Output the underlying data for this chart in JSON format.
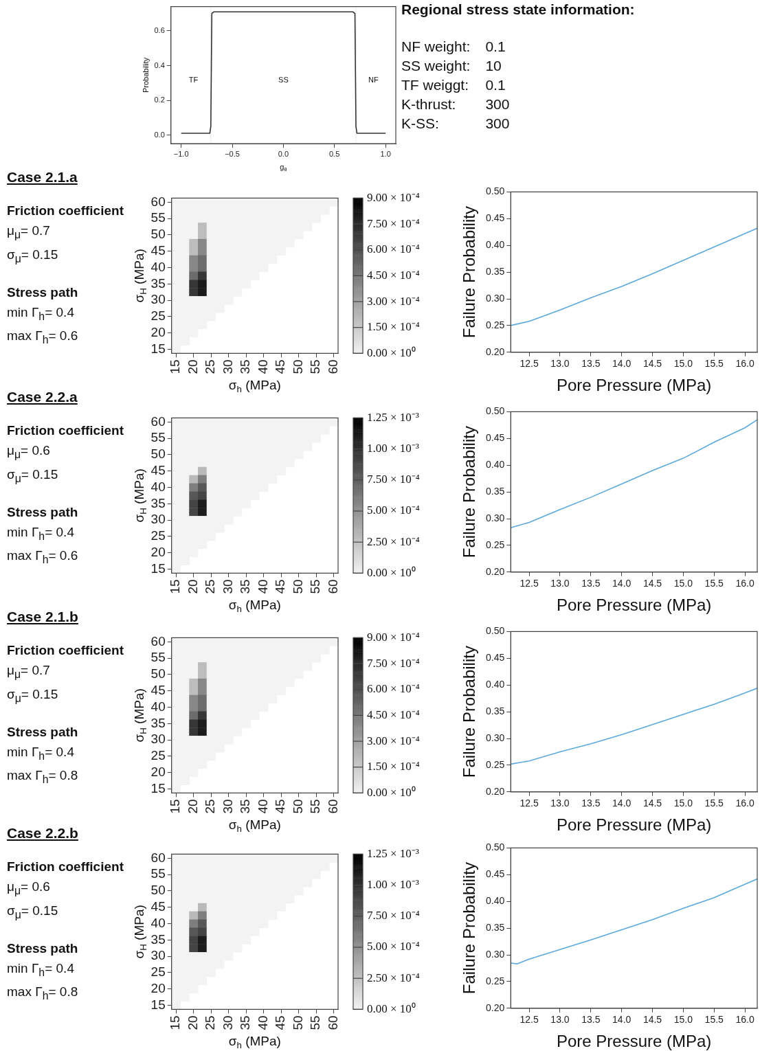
{
  "chart_data": [
    {
      "type": "line",
      "xlabel": "g$_{θ}$",
      "ylabel": "Probability",
      "xlim": [
        -1.1,
        1.1
      ],
      "xticks": [
        {
          "value": -1,
          "label": "−1.0"
        },
        {
          "value": -0.5,
          "label": "−0.5"
        },
        {
          "value": 0,
          "label": "0.0"
        },
        {
          "value": 0.5,
          "label": "0.5"
        },
        {
          "value": 1,
          "label": "1.0"
        }
      ],
      "ylim": [
        -0.05,
        0.74
      ],
      "yticks": [
        {
          "value": 0,
          "label": "0.0"
        },
        {
          "value": 0.2,
          "label": "0.2"
        },
        {
          "value": 0.4,
          "label": "0.4"
        },
        {
          "value": 0.6,
          "label": "0.6"
        }
      ],
      "series": [
        {
          "color": "#333333",
          "x": [
            -1,
            -0.72,
            -0.71,
            -0.7,
            -0.68,
            0.68,
            0.7,
            0.71,
            0.72,
            1
          ],
          "values": [
            0.01,
            0.01,
            0.05,
            0.7,
            0.71,
            0.71,
            0.7,
            0.05,
            0.01,
            0.01
          ]
        }
      ],
      "ref_lines": [
        {
          "axis": "x",
          "value": -0.71,
          "color": "#bbbbbb",
          "line_style": "dotted"
        },
        {
          "axis": "x",
          "value": 0.71,
          "color": "#bbbbbb",
          "line_style": "dotted"
        }
      ],
      "annotations": [
        "TF",
        "SS",
        "NF"
      ]
    },
    {
      "type": "other",
      "title": "Regional stress state information:",
      "annotations": [
        "NF weight:",
        "0.1",
        "SS weight:",
        "10",
        "TF weiggt:",
        "0.1",
        "K-thrust:",
        "300",
        "K-SS:",
        "300"
      ]
    },
    {
      "type": "other",
      "title": "Case 2.1.a",
      "annotations": [
        "Friction coefficient",
        "μ$_{μ}$= 0.7",
        "σ$_{μ}$= 0.15",
        "Stress path",
        "min Γ$_{h}$= 0.4",
        "max Γ$_{h}$= 0.6"
      ]
    },
    {
      "type": "heatmap",
      "xlabel": "σ$_{h}$ (MPa)",
      "ylabel": "σ$_{H}$ (MPa)",
      "categories": [
        "15",
        null,
        "20",
        null,
        "25",
        null,
        "30",
        null,
        "35",
        null,
        "40",
        null,
        "45",
        null,
        "50",
        null,
        "55",
        null,
        "60"
      ],
      "y_categories": [
        "60",
        null,
        "55",
        null,
        "50",
        null,
        "45",
        null,
        "40",
        null,
        "35",
        null,
        "30",
        null,
        "25",
        null,
        "20",
        null,
        "15"
      ],
      "clim": [
        0,
        0.0009
      ],
      "cticks": [
        {
          "value": 0,
          "label": "0.00 × 10⁰"
        },
        {
          "value": 0.00015,
          "label": "1.50 × 10⁻⁴"
        },
        {
          "value": 0.0003,
          "label": "3.00 × 10⁻⁴"
        },
        {
          "value": 0.00045,
          "label": "4.50 × 10⁻⁴"
        },
        {
          "value": 0.0006,
          "label": "6.00 × 10⁻⁴"
        },
        {
          "value": 0.00075,
          "label": "7.50 × 10⁻⁴"
        },
        {
          "value": 0.0009,
          "label": "9.00 × 10⁻⁴"
        }
      ],
      "cells": [
        [
          0,
          0,
          0,
          0,
          0,
          0,
          0,
          0,
          0,
          0,
          0,
          0,
          0,
          0,
          0,
          0,
          0,
          0,
          0
        ],
        [
          0,
          0,
          0,
          0,
          0,
          0,
          0,
          0,
          0,
          0,
          0,
          0,
          0,
          0,
          0,
          0,
          0,
          0,
          null
        ],
        [
          0,
          0,
          0,
          0,
          0,
          0,
          0,
          0,
          0,
          0,
          0,
          0,
          0,
          0,
          0,
          0,
          0,
          null,
          null
        ],
        [
          0,
          0,
          0,
          0.0002,
          0,
          0,
          0,
          0,
          0,
          0,
          0,
          0,
          0,
          0,
          0,
          0,
          null,
          null,
          null
        ],
        [
          0,
          0,
          0,
          0.0002,
          0,
          0,
          0,
          0,
          0,
          0,
          0,
          0,
          0,
          0,
          0,
          null,
          null,
          null,
          null
        ],
        [
          0,
          0,
          0.0002,
          0.0004,
          0,
          0,
          0,
          0,
          0,
          0,
          0,
          0,
          0,
          0,
          null,
          null,
          null,
          null,
          null
        ],
        [
          0,
          0,
          0.0002,
          0.0004,
          0,
          0,
          0,
          0,
          0,
          0,
          0,
          0,
          0,
          null,
          null,
          null,
          null,
          null,
          null
        ],
        [
          0,
          0,
          0.0004,
          0.0005,
          0,
          0,
          0,
          0,
          0,
          0,
          0,
          0,
          null,
          null,
          null,
          null,
          null,
          null,
          null
        ],
        [
          0,
          0,
          0.0004,
          0.0005,
          0,
          0,
          0,
          0,
          0,
          0,
          0,
          null,
          null,
          null,
          null,
          null,
          null,
          null,
          null
        ],
        [
          0,
          0,
          0.0005,
          0.0007,
          0,
          0,
          0,
          0,
          0,
          0,
          null,
          null,
          null,
          null,
          null,
          null,
          null,
          null,
          null
        ],
        [
          0,
          0,
          0.0007,
          0.0008,
          0,
          0,
          0,
          0,
          0,
          null,
          null,
          null,
          null,
          null,
          null,
          null,
          null,
          null,
          null
        ],
        [
          0,
          0,
          0.0007,
          0.0008,
          0,
          0,
          0,
          0,
          null,
          null,
          null,
          null,
          null,
          null,
          null,
          null,
          null,
          null,
          null
        ],
        [
          0,
          0,
          0,
          0,
          0,
          0,
          0,
          null,
          null,
          null,
          null,
          null,
          null,
          null,
          null,
          null,
          null,
          null,
          null
        ],
        [
          0,
          0,
          0,
          0,
          0,
          0,
          null,
          null,
          null,
          null,
          null,
          null,
          null,
          null,
          null,
          null,
          null,
          null,
          null
        ],
        [
          0,
          0,
          0,
          0,
          0,
          null,
          null,
          null,
          null,
          null,
          null,
          null,
          null,
          null,
          null,
          null,
          null,
          null,
          null
        ],
        [
          0,
          0,
          0,
          0,
          null,
          null,
          null,
          null,
          null,
          null,
          null,
          null,
          null,
          null,
          null,
          null,
          null,
          null,
          null
        ],
        [
          0,
          0,
          0,
          null,
          null,
          null,
          null,
          null,
          null,
          null,
          null,
          null,
          null,
          null,
          null,
          null,
          null,
          null,
          null
        ],
        [
          0,
          0,
          null,
          null,
          null,
          null,
          null,
          null,
          null,
          null,
          null,
          null,
          null,
          null,
          null,
          null,
          null,
          null,
          null
        ],
        [
          0,
          null,
          null,
          null,
          null,
          null,
          null,
          null,
          null,
          null,
          null,
          null,
          null,
          null,
          null,
          null,
          null,
          null,
          null
        ]
      ]
    },
    {
      "type": "line",
      "xlabel": "Pore Pressure (MPa)",
      "ylabel": "Failure Probability",
      "xlim": [
        12.2,
        16.2
      ],
      "xticks": [
        {
          "value": 12.5,
          "label": "12.5"
        },
        {
          "value": 13,
          "label": "13.0"
        },
        {
          "value": 13.5,
          "label": "13.5"
        },
        {
          "value": 14,
          "label": "14.0"
        },
        {
          "value": 14.5,
          "label": "14.5"
        },
        {
          "value": 15,
          "label": "15.0"
        },
        {
          "value": 15.5,
          "label": "15.5"
        },
        {
          "value": 16,
          "label": "16.0"
        }
      ],
      "ylim": [
        0.2,
        0.5
      ],
      "yticks": [
        {
          "value": 0.2,
          "label": "0.20"
        },
        {
          "value": 0.25,
          "label": "0.25"
        },
        {
          "value": 0.3,
          "label": "0.30"
        },
        {
          "value": 0.35,
          "label": "0.35"
        },
        {
          "value": 0.4,
          "label": "0.40"
        },
        {
          "value": 0.45,
          "label": "0.45"
        },
        {
          "value": 0.5,
          "label": "0.50"
        }
      ],
      "x": [
        12.2,
        12.5,
        13,
        13.5,
        14,
        14.5,
        15,
        15.5,
        16,
        16.2
      ],
      "series": [
        {
          "color": "#5aa9dc",
          "values": [
            0.25,
            0.258,
            0.279,
            0.302,
            0.323,
            0.347,
            0.372,
            0.397,
            0.422,
            0.432
          ]
        }
      ]
    },
    {
      "type": "other",
      "title": "Case 2.2.a",
      "annotations": [
        "Friction coefficient",
        "μ$_{μ}$= 0.6",
        "σ$_{μ}$= 0.15",
        "Stress path",
        "min Γ$_{h}$= 0.4",
        "max Γ$_{h}$= 0.6"
      ]
    },
    {
      "type": "heatmap",
      "xlabel": "σ$_{h}$ (MPa)",
      "ylabel": "σ$_{H}$ (MPa)",
      "categories": [
        "15",
        null,
        "20",
        null,
        "25",
        null,
        "30",
        null,
        "35",
        null,
        "40",
        null,
        "45",
        null,
        "50",
        null,
        "55",
        null,
        "60"
      ],
      "y_categories": [
        "60",
        null,
        "55",
        null,
        "50",
        null,
        "45",
        null,
        "40",
        null,
        "35",
        null,
        "30",
        null,
        "25",
        null,
        "20",
        null,
        "15"
      ],
      "clim": [
        0,
        0.00125
      ],
      "cticks": [
        {
          "value": 0,
          "label": "0.00 × 10⁰"
        },
        {
          "value": 0.00025,
          "label": "2.50 × 10⁻⁴"
        },
        {
          "value": 0.0005,
          "label": "5.00 × 10⁻⁴"
        },
        {
          "value": 0.00075,
          "label": "7.50 × 10⁻⁴"
        },
        {
          "value": 0.001,
          "label": "1.00 × 10⁻³"
        },
        {
          "value": 0.00125,
          "label": "1.25 × 10⁻³"
        }
      ],
      "cells": [
        [
          0,
          0,
          0,
          0,
          0,
          0,
          0,
          0,
          0,
          0,
          0,
          0,
          0,
          0,
          0,
          0,
          0,
          0,
          0
        ],
        [
          0,
          0,
          0,
          0,
          0,
          0,
          0,
          0,
          0,
          0,
          0,
          0,
          0,
          0,
          0,
          0,
          0,
          0,
          null
        ],
        [
          0,
          0,
          0,
          0,
          0,
          0,
          0,
          0,
          0,
          0,
          0,
          0,
          0,
          0,
          0,
          0,
          0,
          null,
          null
        ],
        [
          0,
          0,
          0,
          0,
          0,
          0,
          0,
          0,
          0,
          0,
          0,
          0,
          0,
          0,
          0,
          0,
          null,
          null,
          null
        ],
        [
          0,
          0,
          0,
          0,
          0,
          0,
          0,
          0,
          0,
          0,
          0,
          0,
          0,
          0,
          0,
          null,
          null,
          null,
          null
        ],
        [
          0,
          0,
          0,
          0,
          0,
          0,
          0,
          0,
          0,
          0,
          0,
          0,
          0,
          0,
          null,
          null,
          null,
          null,
          null
        ],
        [
          0,
          0,
          0,
          0.0003,
          0,
          0,
          0,
          0,
          0,
          0,
          0,
          0,
          0,
          null,
          null,
          null,
          null,
          null,
          null
        ],
        [
          0,
          0,
          0.0003,
          0.0006,
          0,
          0,
          0,
          0,
          0,
          0,
          0,
          0,
          null,
          null,
          null,
          null,
          null,
          null,
          null
        ],
        [
          0,
          0,
          0.0006,
          0.0008,
          0,
          0,
          0,
          0,
          0,
          0,
          0,
          null,
          null,
          null,
          null,
          null,
          null,
          null,
          null
        ],
        [
          0,
          0,
          0.0008,
          0.0009,
          0,
          0,
          0,
          0,
          0,
          0,
          null,
          null,
          null,
          null,
          null,
          null,
          null,
          null,
          null
        ],
        [
          0,
          0,
          0.0009,
          0.0011,
          0,
          0,
          0,
          0,
          0,
          null,
          null,
          null,
          null,
          null,
          null,
          null,
          null,
          null,
          null
        ],
        [
          0,
          0,
          0.0009,
          0.0011,
          0,
          0,
          0,
          0,
          null,
          null,
          null,
          null,
          null,
          null,
          null,
          null,
          null,
          null,
          null
        ],
        [
          0,
          0,
          0,
          0,
          0,
          0,
          0,
          null,
          null,
          null,
          null,
          null,
          null,
          null,
          null,
          null,
          null,
          null,
          null
        ],
        [
          0,
          0,
          0,
          0,
          0,
          0,
          null,
          null,
          null,
          null,
          null,
          null,
          null,
          null,
          null,
          null,
          null,
          null,
          null
        ],
        [
          0,
          0,
          0,
          0,
          0,
          null,
          null,
          null,
          null,
          null,
          null,
          null,
          null,
          null,
          null,
          null,
          null,
          null,
          null
        ],
        [
          0,
          0,
          0,
          0,
          null,
          null,
          null,
          null,
          null,
          null,
          null,
          null,
          null,
          null,
          null,
          null,
          null,
          null,
          null
        ],
        [
          0,
          0,
          0,
          null,
          null,
          null,
          null,
          null,
          null,
          null,
          null,
          null,
          null,
          null,
          null,
          null,
          null,
          null,
          null
        ],
        [
          0,
          0,
          null,
          null,
          null,
          null,
          null,
          null,
          null,
          null,
          null,
          null,
          null,
          null,
          null,
          null,
          null,
          null,
          null
        ],
        [
          0,
          null,
          null,
          null,
          null,
          null,
          null,
          null,
          null,
          null,
          null,
          null,
          null,
          null,
          null,
          null,
          null,
          null,
          null
        ]
      ]
    },
    {
      "type": "line",
      "xlabel": "Pore Pressure (MPa)",
      "ylabel": "Failure Probability",
      "xlim": [
        12.2,
        16.2
      ],
      "xticks": [
        {
          "value": 12.5,
          "label": "12.5"
        },
        {
          "value": 13,
          "label": "13.0"
        },
        {
          "value": 13.5,
          "label": "13.5"
        },
        {
          "value": 14,
          "label": "14.0"
        },
        {
          "value": 14.5,
          "label": "14.5"
        },
        {
          "value": 15,
          "label": "15.0"
        },
        {
          "value": 15.5,
          "label": "15.5"
        },
        {
          "value": 16,
          "label": "16.0"
        }
      ],
      "ylim": [
        0.2,
        0.5
      ],
      "yticks": [
        {
          "value": 0.2,
          "label": "0.20"
        },
        {
          "value": 0.25,
          "label": "0.25"
        },
        {
          "value": 0.3,
          "label": "0.30"
        },
        {
          "value": 0.35,
          "label": "0.35"
        },
        {
          "value": 0.4,
          "label": "0.40"
        },
        {
          "value": 0.45,
          "label": "0.45"
        },
        {
          "value": 0.5,
          "label": "0.50"
        }
      ],
      "x": [
        12.2,
        12.5,
        13,
        13.5,
        14,
        14.5,
        15,
        15.5,
        16,
        16.2
      ],
      "series": [
        {
          "color": "#5aa9dc",
          "values": [
            0.283,
            0.293,
            0.317,
            0.34,
            0.365,
            0.39,
            0.413,
            0.443,
            0.47,
            0.485
          ]
        }
      ]
    },
    {
      "type": "other",
      "title": "Case 2.1.b",
      "annotations": [
        "Friction coefficient",
        "μ$_{μ}$= 0.7",
        "σ$_{μ}$= 0.15",
        "Stress path",
        "min Γ$_{h}$= 0.4",
        "max Γ$_{h}$= 0.8"
      ]
    },
    {
      "type": "heatmap",
      "xlabel": "σ$_{h}$ (MPa)",
      "ylabel": "σ$_{H}$ (MPa)",
      "categories": [
        "15",
        null,
        "20",
        null,
        "25",
        null,
        "30",
        null,
        "35",
        null,
        "40",
        null,
        "45",
        null,
        "50",
        null,
        "55",
        null,
        "60"
      ],
      "y_categories": [
        "60",
        null,
        "55",
        null,
        "50",
        null,
        "45",
        null,
        "40",
        null,
        "35",
        null,
        "30",
        null,
        "25",
        null,
        "20",
        null,
        "15"
      ],
      "clim": [
        0,
        0.0009
      ],
      "cticks": [
        {
          "value": 0,
          "label": "0.00 × 10⁰"
        },
        {
          "value": 0.00015,
          "label": "1.50 × 10⁻⁴"
        },
        {
          "value": 0.0003,
          "label": "3.00 × 10⁻⁴"
        },
        {
          "value": 0.00045,
          "label": "4.50 × 10⁻⁴"
        },
        {
          "value": 0.0006,
          "label": "6.00 × 10⁻⁴"
        },
        {
          "value": 0.00075,
          "label": "7.50 × 10⁻⁴"
        },
        {
          "value": 0.0009,
          "label": "9.00 × 10⁻⁴"
        }
      ],
      "cells": [
        [
          0,
          0,
          0,
          0,
          0,
          0,
          0,
          0,
          0,
          0,
          0,
          0,
          0,
          0,
          0,
          0,
          0,
          0,
          0
        ],
        [
          0,
          0,
          0,
          0,
          0,
          0,
          0,
          0,
          0,
          0,
          0,
          0,
          0,
          0,
          0,
          0,
          0,
          0,
          null
        ],
        [
          0,
          0,
          0,
          0,
          0,
          0,
          0,
          0,
          0,
          0,
          0,
          0,
          0,
          0,
          0,
          0,
          0,
          null,
          null
        ],
        [
          0,
          0,
          0,
          0.0002,
          0,
          0,
          0,
          0,
          0,
          0,
          0,
          0,
          0,
          0,
          0,
          0,
          null,
          null,
          null
        ],
        [
          0,
          0,
          0,
          0.0002,
          0,
          0,
          0,
          0,
          0,
          0,
          0,
          0,
          0,
          0,
          0,
          null,
          null,
          null,
          null
        ],
        [
          0,
          0,
          0.0002,
          0.0004,
          0,
          0,
          0,
          0,
          0,
          0,
          0,
          0,
          0,
          0,
          null,
          null,
          null,
          null,
          null
        ],
        [
          0,
          0,
          0.0002,
          0.0004,
          0,
          0,
          0,
          0,
          0,
          0,
          0,
          0,
          0,
          null,
          null,
          null,
          null,
          null,
          null
        ],
        [
          0,
          0,
          0.0004,
          0.0005,
          0,
          0,
          0,
          0,
          0,
          0,
          0,
          0,
          null,
          null,
          null,
          null,
          null,
          null,
          null
        ],
        [
          0,
          0,
          0.0004,
          0.0005,
          0,
          0,
          0,
          0,
          0,
          0,
          0,
          null,
          null,
          null,
          null,
          null,
          null,
          null,
          null
        ],
        [
          0,
          0,
          0.0005,
          0.0007,
          0,
          0,
          0,
          0,
          0,
          0,
          null,
          null,
          null,
          null,
          null,
          null,
          null,
          null,
          null
        ],
        [
          0,
          0,
          0.0007,
          0.0008,
          0,
          0,
          0,
          0,
          0,
          null,
          null,
          null,
          null,
          null,
          null,
          null,
          null,
          null,
          null
        ],
        [
          0,
          0,
          0.0007,
          0.0008,
          0,
          0,
          0,
          0,
          null,
          null,
          null,
          null,
          null,
          null,
          null,
          null,
          null,
          null,
          null
        ],
        [
          0,
          0,
          0,
          0,
          0,
          0,
          0,
          null,
          null,
          null,
          null,
          null,
          null,
          null,
          null,
          null,
          null,
          null,
          null
        ],
        [
          0,
          0,
          0,
          0,
          0,
          0,
          null,
          null,
          null,
          null,
          null,
          null,
          null,
          null,
          null,
          null,
          null,
          null,
          null
        ],
        [
          0,
          0,
          0,
          0,
          0,
          null,
          null,
          null,
          null,
          null,
          null,
          null,
          null,
          null,
          null,
          null,
          null,
          null,
          null
        ],
        [
          0,
          0,
          0,
          0,
          null,
          null,
          null,
          null,
          null,
          null,
          null,
          null,
          null,
          null,
          null,
          null,
          null,
          null,
          null
        ],
        [
          0,
          0,
          0,
          null,
          null,
          null,
          null,
          null,
          null,
          null,
          null,
          null,
          null,
          null,
          null,
          null,
          null,
          null,
          null
        ],
        [
          0,
          0,
          null,
          null,
          null,
          null,
          null,
          null,
          null,
          null,
          null,
          null,
          null,
          null,
          null,
          null,
          null,
          null,
          null
        ],
        [
          0,
          null,
          null,
          null,
          null,
          null,
          null,
          null,
          null,
          null,
          null,
          null,
          null,
          null,
          null,
          null,
          null,
          null,
          null
        ]
      ]
    },
    {
      "type": "line",
      "xlabel": "Pore Pressure (MPa)",
      "ylabel": "Failure Probability",
      "xlim": [
        12.2,
        16.2
      ],
      "xticks": [
        {
          "value": 12.5,
          "label": "12.5"
        },
        {
          "value": 13,
          "label": "13.0"
        },
        {
          "value": 13.5,
          "label": "13.5"
        },
        {
          "value": 14,
          "label": "14.0"
        },
        {
          "value": 14.5,
          "label": "14.5"
        },
        {
          "value": 15,
          "label": "15.0"
        },
        {
          "value": 15.5,
          "label": "15.5"
        },
        {
          "value": 16,
          "label": "16.0"
        }
      ],
      "ylim": [
        0.2,
        0.5
      ],
      "yticks": [
        {
          "value": 0.2,
          "label": "0.20"
        },
        {
          "value": 0.25,
          "label": "0.25"
        },
        {
          "value": 0.3,
          "label": "0.30"
        },
        {
          "value": 0.35,
          "label": "0.35"
        },
        {
          "value": 0.4,
          "label": "0.40"
        },
        {
          "value": 0.45,
          "label": "0.45"
        },
        {
          "value": 0.5,
          "label": "0.50"
        }
      ],
      "x": [
        12.2,
        12.5,
        13,
        13.5,
        14,
        14.5,
        15,
        15.5,
        16,
        16.2
      ],
      "series": [
        {
          "color": "#5aa9dc",
          "values": [
            0.252,
            0.258,
            0.275,
            0.29,
            0.307,
            0.326,
            0.345,
            0.364,
            0.385,
            0.394
          ]
        }
      ]
    },
    {
      "type": "other",
      "title": "Case 2.2.b",
      "annotations": [
        "Friction coefficient",
        "μ$_{μ}$= 0.6",
        "σ$_{μ}$= 0.15",
        "Stress path",
        "min Γ$_{h}$= 0.4",
        "max Γ$_{h}$= 0.8"
      ]
    },
    {
      "type": "heatmap",
      "xlabel": "σ$_{h}$ (MPa)",
      "ylabel": "σ$_{H}$ (MPa)",
      "categories": [
        "15",
        null,
        "20",
        null,
        "25",
        null,
        "30",
        null,
        "35",
        null,
        "40",
        null,
        "45",
        null,
        "50",
        null,
        "55",
        null,
        "60"
      ],
      "y_categories": [
        "60",
        null,
        "55",
        null,
        "50",
        null,
        "45",
        null,
        "40",
        null,
        "35",
        null,
        "30",
        null,
        "25",
        null,
        "20",
        null,
        "15"
      ],
      "clim": [
        0,
        0.00125
      ],
      "cticks": [
        {
          "value": 0,
          "label": "0.00 × 10⁰"
        },
        {
          "value": 0.00025,
          "label": "2.50 × 10⁻⁴"
        },
        {
          "value": 0.0005,
          "label": "5.00 × 10⁻⁴"
        },
        {
          "value": 0.00075,
          "label": "7.50 × 10⁻⁴"
        },
        {
          "value": 0.001,
          "label": "1.00 × 10⁻³"
        },
        {
          "value": 0.00125,
          "label": "1.25 × 10⁻³"
        }
      ],
      "cells": [
        [
          0,
          0,
          0,
          0,
          0,
          0,
          0,
          0,
          0,
          0,
          0,
          0,
          0,
          0,
          0,
          0,
          0,
          0,
          0
        ],
        [
          0,
          0,
          0,
          0,
          0,
          0,
          0,
          0,
          0,
          0,
          0,
          0,
          0,
          0,
          0,
          0,
          0,
          0,
          null
        ],
        [
          0,
          0,
          0,
          0,
          0,
          0,
          0,
          0,
          0,
          0,
          0,
          0,
          0,
          0,
          0,
          0,
          0,
          null,
          null
        ],
        [
          0,
          0,
          0,
          0,
          0,
          0,
          0,
          0,
          0,
          0,
          0,
          0,
          0,
          0,
          0,
          0,
          null,
          null,
          null
        ],
        [
          0,
          0,
          0,
          0,
          0,
          0,
          0,
          0,
          0,
          0,
          0,
          0,
          0,
          0,
          0,
          null,
          null,
          null,
          null
        ],
        [
          0,
          0,
          0,
          0,
          0,
          0,
          0,
          0,
          0,
          0,
          0,
          0,
          0,
          0,
          null,
          null,
          null,
          null,
          null
        ],
        [
          0,
          0,
          0,
          0.0003,
          0,
          0,
          0,
          0,
          0,
          0,
          0,
          0,
          0,
          null,
          null,
          null,
          null,
          null,
          null
        ],
        [
          0,
          0,
          0.0003,
          0.0006,
          0,
          0,
          0,
          0,
          0,
          0,
          0,
          0,
          null,
          null,
          null,
          null,
          null,
          null,
          null
        ],
        [
          0,
          0,
          0.0006,
          0.0008,
          0,
          0,
          0,
          0,
          0,
          0,
          0,
          null,
          null,
          null,
          null,
          null,
          null,
          null,
          null
        ],
        [
          0,
          0,
          0.0008,
          0.0009,
          0,
          0,
          0,
          0,
          0,
          0,
          null,
          null,
          null,
          null,
          null,
          null,
          null,
          null,
          null
        ],
        [
          0,
          0,
          0.0009,
          0.0011,
          0,
          0,
          0,
          0,
          0,
          null,
          null,
          null,
          null,
          null,
          null,
          null,
          null,
          null,
          null
        ],
        [
          0,
          0,
          0.0009,
          0.0011,
          0,
          0,
          0,
          0,
          null,
          null,
          null,
          null,
          null,
          null,
          null,
          null,
          null,
          null,
          null
        ],
        [
          0,
          0,
          0,
          0,
          0,
          0,
          0,
          null,
          null,
          null,
          null,
          null,
          null,
          null,
          null,
          null,
          null,
          null,
          null
        ],
        [
          0,
          0,
          0,
          0,
          0,
          0,
          null,
          null,
          null,
          null,
          null,
          null,
          null,
          null,
          null,
          null,
          null,
          null,
          null
        ],
        [
          0,
          0,
          0,
          0,
          0,
          null,
          null,
          null,
          null,
          null,
          null,
          null,
          null,
          null,
          null,
          null,
          null,
          null,
          null
        ],
        [
          0,
          0,
          0,
          0,
          null,
          null,
          null,
          null,
          null,
          null,
          null,
          null,
          null,
          null,
          null,
          null,
          null,
          null,
          null
        ],
        [
          0,
          0,
          0,
          null,
          null,
          null,
          null,
          null,
          null,
          null,
          null,
          null,
          null,
          null,
          null,
          null,
          null,
          null,
          null
        ],
        [
          0,
          0,
          null,
          null,
          null,
          null,
          null,
          null,
          null,
          null,
          null,
          null,
          null,
          null,
          null,
          null,
          null,
          null,
          null
        ],
        [
          0,
          null,
          null,
          null,
          null,
          null,
          null,
          null,
          null,
          null,
          null,
          null,
          null,
          null,
          null,
          null,
          null,
          null,
          null
        ]
      ]
    },
    {
      "type": "line",
      "xlabel": "Pore Pressure (MPa)",
      "ylabel": "Failure Probability",
      "xlim": [
        12.2,
        16.2
      ],
      "xticks": [
        {
          "value": 12.5,
          "label": "12.5"
        },
        {
          "value": 13,
          "label": "13.0"
        },
        {
          "value": 13.5,
          "label": "13.5"
        },
        {
          "value": 14,
          "label": "14.0"
        },
        {
          "value": 14.5,
          "label": "14.5"
        },
        {
          "value": 15,
          "label": "15.0"
        },
        {
          "value": 15.5,
          "label": "15.5"
        },
        {
          "value": 16,
          "label": "16.0"
        }
      ],
      "ylim": [
        0.2,
        0.5
      ],
      "yticks": [
        {
          "value": 0.2,
          "label": "0.20"
        },
        {
          "value": 0.25,
          "label": "0.25"
        },
        {
          "value": 0.3,
          "label": "0.30"
        },
        {
          "value": 0.35,
          "label": "0.35"
        },
        {
          "value": 0.4,
          "label": "0.40"
        },
        {
          "value": 0.45,
          "label": "0.45"
        },
        {
          "value": 0.5,
          "label": "0.50"
        }
      ],
      "x": [
        12.2,
        12.3,
        12.5,
        13,
        13.5,
        14,
        14.5,
        15,
        15.5,
        16,
        16.2
      ],
      "series": [
        {
          "color": "#5aa9dc",
          "values": [
            0.285,
            0.283,
            0.292,
            0.31,
            0.328,
            0.347,
            0.366,
            0.387,
            0.407,
            0.432,
            0.442
          ]
        }
      ]
    }
  ]
}
